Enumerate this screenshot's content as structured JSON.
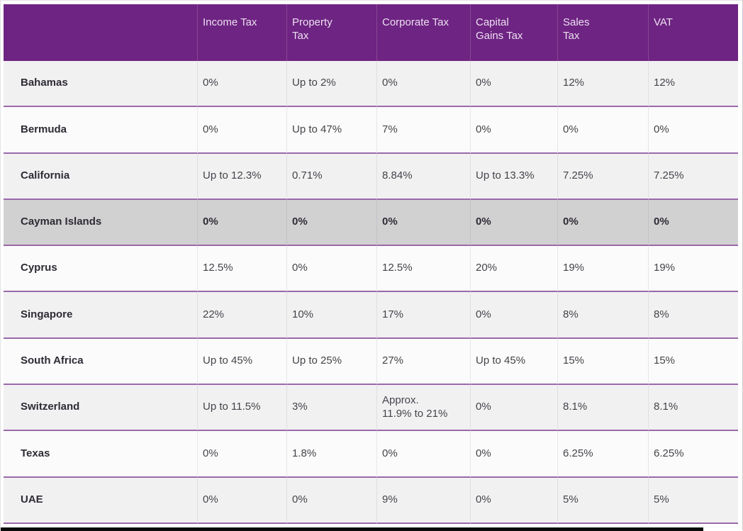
{
  "table": {
    "columns": [
      "",
      "Income Tax",
      "Property\nTax",
      "Corporate Tax",
      "Capital\nGains Tax",
      "Sales\nTax",
      "VAT"
    ],
    "rows": [
      {
        "name": "Bahamas",
        "shade": "gray",
        "values": [
          "0%",
          "Up to 2%",
          "0%",
          "0%",
          "12%",
          "12%"
        ]
      },
      {
        "name": "Bermuda",
        "shade": "white",
        "values": [
          "0%",
          "Up to 47%",
          "7%",
          "0%",
          "0%",
          "0%"
        ]
      },
      {
        "name": "California",
        "shade": "gray",
        "values": [
          "Up to 12.3%",
          "0.71%",
          "8.84%",
          "Up to 13.3%",
          "7.25%",
          "7.25%"
        ]
      },
      {
        "name": "Cayman Islands",
        "shade": "highlight",
        "values": [
          "0%",
          "0%",
          "0%",
          "0%",
          "0%",
          "0%"
        ]
      },
      {
        "name": "Cyprus",
        "shade": "white",
        "values": [
          "12.5%",
          "0%",
          "12.5%",
          "20%",
          "19%",
          "19%"
        ]
      },
      {
        "name": "Singapore",
        "shade": "gray",
        "values": [
          "22%",
          "10%",
          "17%",
          "0%",
          "8%",
          "8%"
        ]
      },
      {
        "name": "South Africa",
        "shade": "white",
        "values": [
          "Up to 45%",
          "Up to 25%",
          "27%",
          "Up to 45%",
          "15%",
          "15%"
        ]
      },
      {
        "name": "Switzerland",
        "shade": "gray",
        "values": [
          "Up to 11.5%",
          "3%",
          "Approx.\n11.9% to 21%",
          "0%",
          "8.1%",
          "8.1%"
        ]
      },
      {
        "name": "Texas",
        "shade": "white",
        "values": [
          "0%",
          "1.8%",
          "0%",
          "0%",
          "6.25%",
          "6.25%"
        ]
      },
      {
        "name": "UAE",
        "shade": "gray",
        "values": [
          "0%",
          "0%",
          "9%",
          "0%",
          "5%",
          "5%"
        ]
      }
    ],
    "colors": {
      "header_bg": "#6e2482",
      "header_text": "#ecdff2",
      "row_divider": "#9a69aa",
      "row_gray": "#f2f1f2",
      "row_white": "#fbfbfb",
      "highlight_row_bg": "#d2d1d2",
      "value_text": "#454349",
      "name_text": "#2e2b34"
    }
  }
}
